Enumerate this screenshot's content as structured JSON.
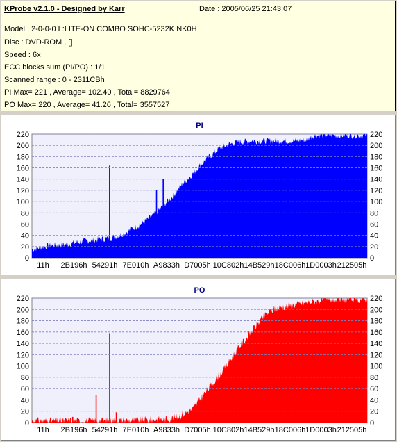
{
  "info": {
    "app_title": "KProbe v2.1.0 - Designed by Karr",
    "date": "Date : 2005/06/25 21:43:07",
    "model": "Model : 2-0-0-0 L:LITE-ON COMBO SOHC-5232K NK0H",
    "disc": "Disc : DVD-ROM ,  []",
    "speed": "Speed : 6x",
    "ecc": "ECC blocks sum (PI/PO) : 1/1",
    "scanned_range": "Scanned range : 0 - 2311CBh",
    "pi_stats": "PI Max= 221 , Average= 102.40 , Total= 8829764",
    "po_stats": "PO Max= 220 , Average= 41.26 , Total= 3557527"
  },
  "colors": {
    "pi": "#0000ff",
    "po": "#ff0000",
    "plot_bg": "#f0f0fc",
    "grid": "#8080c0",
    "title": "#000080"
  },
  "chart_data": [
    {
      "type": "area",
      "title": "PI",
      "ylim": [
        0,
        220
      ],
      "yticks": [
        "0",
        "20",
        "40",
        "60",
        "80",
        "100",
        "120",
        "140",
        "160",
        "180",
        "200",
        "220"
      ],
      "xticks": [
        "11h",
        "2B196h",
        "54291h",
        "7E010h",
        "A9833h",
        "D7005h",
        "10C802h",
        "14B529h",
        "18C006h",
        "1D0003h",
        "212505h"
      ],
      "grid": true,
      "series": [
        {
          "values": [
            [
              0.0,
              15
            ],
            [
              0.02,
              18
            ],
            [
              0.04,
              20
            ],
            [
              0.06,
              22
            ],
            [
              0.08,
              22
            ],
            [
              0.1,
              24
            ],
            [
              0.12,
              26
            ],
            [
              0.14,
              28
            ],
            [
              0.16,
              30
            ],
            [
              0.18,
              31
            ],
            [
              0.2,
              33
            ],
            [
              0.22,
              34
            ],
            [
              0.24,
              36
            ],
            [
              0.26,
              40
            ],
            [
              0.28,
              45
            ],
            [
              0.3,
              52
            ],
            [
              0.32,
              58
            ],
            [
              0.34,
              66
            ],
            [
              0.36,
              75
            ],
            [
              0.38,
              85
            ],
            [
              0.4,
              98
            ],
            [
              0.42,
              110
            ],
            [
              0.44,
              125
            ],
            [
              0.46,
              138
            ],
            [
              0.48,
              150
            ],
            [
              0.5,
              163
            ],
            [
              0.52,
              175
            ],
            [
              0.54,
              185
            ],
            [
              0.56,
              195
            ],
            [
              0.58,
              200
            ],
            [
              0.6,
              204
            ],
            [
              0.62,
              206
            ],
            [
              0.64,
              207
            ],
            [
              0.66,
              208
            ],
            [
              0.7,
              208
            ],
            [
              0.74,
              208
            ],
            [
              0.78,
              208
            ],
            [
              0.82,
              210
            ],
            [
              0.84,
              217
            ],
            [
              0.86,
              218
            ],
            [
              0.9,
              218
            ],
            [
              0.95,
              218
            ],
            [
              1.0,
              218
            ]
          ],
          "spikes": [
            [
              0.23,
              164
            ],
            [
              0.37,
              120
            ],
            [
              0.39,
              140
            ]
          ],
          "noise": 12
        }
      ]
    },
    {
      "type": "area",
      "title": "PO",
      "ylim": [
        0,
        220
      ],
      "yticks": [
        "0",
        "20",
        "40",
        "60",
        "80",
        "100",
        "120",
        "140",
        "160",
        "180",
        "200",
        "220"
      ],
      "xticks": [
        "11h",
        "2B196h",
        "54291h",
        "7E010h",
        "A9833h",
        "D7005h",
        "10C802h",
        "14B529h",
        "18C006h",
        "1D0003h",
        "212505h"
      ],
      "grid": true,
      "series": [
        {
          "values": [
            [
              0.0,
              3
            ],
            [
              0.05,
              3
            ],
            [
              0.1,
              3
            ],
            [
              0.15,
              3
            ],
            [
              0.2,
              3
            ],
            [
              0.25,
              4
            ],
            [
              0.3,
              4
            ],
            [
              0.35,
              5
            ],
            [
              0.4,
              6
            ],
            [
              0.42,
              8
            ],
            [
              0.44,
              12
            ],
            [
              0.46,
              18
            ],
            [
              0.48,
              24
            ],
            [
              0.5,
              40
            ],
            [
              0.52,
              55
            ],
            [
              0.54,
              70
            ],
            [
              0.56,
              85
            ],
            [
              0.58,
              100
            ],
            [
              0.6,
              118
            ],
            [
              0.62,
              135
            ],
            [
              0.64,
              150
            ],
            [
              0.66,
              165
            ],
            [
              0.68,
              180
            ],
            [
              0.7,
              192
            ],
            [
              0.72,
              200
            ],
            [
              0.74,
              204
            ],
            [
              0.76,
              206
            ],
            [
              0.78,
              208
            ],
            [
              0.8,
              210
            ],
            [
              0.82,
              212
            ],
            [
              0.84,
              214
            ],
            [
              0.86,
              216
            ],
            [
              0.88,
              217
            ],
            [
              0.9,
              218
            ],
            [
              0.95,
              218
            ],
            [
              1.0,
              218
            ]
          ],
          "spikes": [
            [
              0.23,
              158
            ],
            [
              0.19,
              48
            ],
            [
              0.12,
              10
            ],
            [
              0.25,
              18
            ]
          ],
          "noise": 14
        }
      ]
    }
  ]
}
